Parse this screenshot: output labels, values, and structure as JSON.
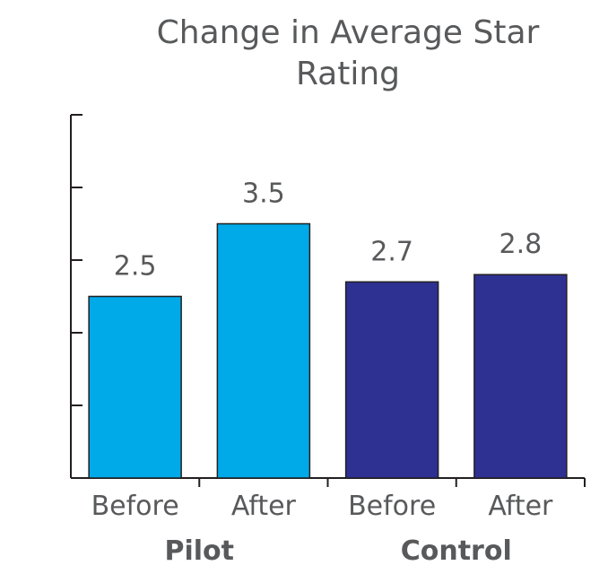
{
  "chart_data": {
    "type": "bar",
    "title_line1": "Change in Average Star",
    "title_line2": "Rating",
    "categories": [
      "Before",
      "After",
      "Before",
      "After"
    ],
    "groups": [
      {
        "name": "Pilot",
        "color": "#00a9e8"
      },
      {
        "name": "Control",
        "color": "#2e3192"
      }
    ],
    "values": [
      2.5,
      3.5,
      2.7,
      2.8
    ],
    "value_labels": [
      "2.5",
      "3.5",
      "2.7",
      "2.8"
    ],
    "bar_groups": [
      0,
      0,
      1,
      1
    ],
    "ylim": [
      0,
      5
    ],
    "y_tick_step": 1,
    "grid": false,
    "xlabel": "",
    "ylabel": ""
  }
}
